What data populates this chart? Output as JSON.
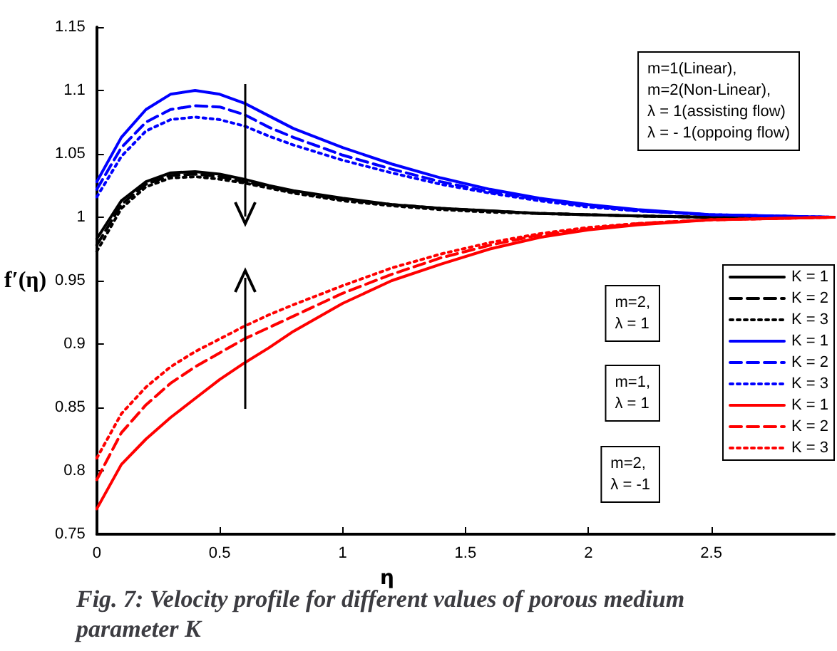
{
  "chart_data": {
    "type": "line",
    "title": "Fig. 7: Velocity profile for different values of porous medium parameter K",
    "xlabel": "η",
    "ylabel": "f′(η)",
    "x": [
      0,
      0.1,
      0.2,
      0.3,
      0.4,
      0.5,
      0.6,
      0.7,
      0.8,
      1.0,
      1.2,
      1.4,
      1.6,
      1.8,
      2.0,
      2.2,
      2.5,
      3
    ],
    "series": [
      {
        "name": "K = 1",
        "color": "#000000",
        "line_style": "solid",
        "values": [
          0.983,
          1.013,
          1.028,
          1.035,
          1.036,
          1.034,
          1.03,
          1.025,
          1.021,
          1.015,
          1.01,
          1.007,
          1.005,
          1.003,
          1.002,
          1.001,
          1.0,
          1.0
        ]
      },
      {
        "name": "K = 2",
        "color": "#000000",
        "line_style": "dashed",
        "values": [
          0.978,
          1.01,
          1.026,
          1.033,
          1.034,
          1.032,
          1.028,
          1.024,
          1.02,
          1.014,
          1.01,
          1.007,
          1.005,
          1.003,
          1.002,
          1.001,
          1.0,
          1.0
        ]
      },
      {
        "name": "K = 3",
        "color": "#000000",
        "line_style": "dotted",
        "values": [
          0.973,
          1.007,
          1.024,
          1.031,
          1.032,
          1.03,
          1.027,
          1.023,
          1.019,
          1.013,
          1.009,
          1.006,
          1.004,
          1.003,
          1.002,
          1.001,
          1.0,
          1.0
        ]
      },
      {
        "name": "K = 1",
        "color": "#0000ff",
        "line_style": "solid",
        "values": [
          1.028,
          1.063,
          1.085,
          1.097,
          1.1,
          1.097,
          1.09,
          1.08,
          1.07,
          1.055,
          1.042,
          1.031,
          1.022,
          1.015,
          1.01,
          1.006,
          1.002,
          1.0
        ]
      },
      {
        "name": "K = 2",
        "color": "#0000ff",
        "line_style": "dashed",
        "values": [
          1.022,
          1.055,
          1.075,
          1.085,
          1.088,
          1.087,
          1.081,
          1.071,
          1.063,
          1.049,
          1.038,
          1.028,
          1.02,
          1.014,
          1.009,
          1.005,
          1.002,
          1.0
        ]
      },
      {
        "name": "K = 3",
        "color": "#0000ff",
        "line_style": "dotted",
        "values": [
          1.016,
          1.048,
          1.068,
          1.077,
          1.079,
          1.077,
          1.072,
          1.064,
          1.057,
          1.045,
          1.035,
          1.026,
          1.019,
          1.013,
          1.008,
          1.005,
          1.002,
          1.0
        ]
      },
      {
        "name": "K = 1",
        "color": "#ff0000",
        "line_style": "solid",
        "values": [
          0.77,
          0.805,
          0.825,
          0.842,
          0.857,
          0.872,
          0.885,
          0.897,
          0.91,
          0.932,
          0.95,
          0.963,
          0.975,
          0.984,
          0.99,
          0.994,
          0.998,
          1.0
        ]
      },
      {
        "name": "K = 2",
        "color": "#ff0000",
        "line_style": "dashed",
        "values": [
          0.793,
          0.83,
          0.852,
          0.869,
          0.882,
          0.893,
          0.904,
          0.913,
          0.922,
          0.94,
          0.955,
          0.968,
          0.978,
          0.986,
          0.991,
          0.995,
          0.998,
          1.0
        ]
      },
      {
        "name": "K = 3",
        "color": "#ff0000",
        "line_style": "dotted",
        "values": [
          0.81,
          0.845,
          0.866,
          0.882,
          0.894,
          0.904,
          0.914,
          0.923,
          0.931,
          0.946,
          0.96,
          0.971,
          0.98,
          0.987,
          0.992,
          0.995,
          0.998,
          1.0
        ]
      }
    ],
    "annotations": [
      "m=1(Linear),\nm=2(Non-Linear),\nλ = 1(assisting flow)\nλ = - 1(oppoing flow)",
      "m=2,\nλ = 1",
      "m=1,\nλ = 1",
      "m=2,\nλ = -1"
    ],
    "xlim": [
      0,
      3
    ],
    "xticks": [
      0,
      0.5,
      1,
      1.5,
      2,
      2.5
    ],
    "ylim": [
      0.75,
      1.15
    ],
    "yticks": [
      0.75,
      0.8,
      0.85,
      0.9,
      0.95,
      1,
      1.05,
      1.1,
      1.15
    ],
    "legend": "right",
    "grid": false,
    "marker": "none"
  }
}
